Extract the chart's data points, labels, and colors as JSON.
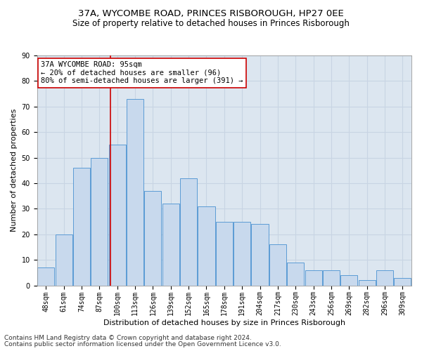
{
  "title1": "37A, WYCOMBE ROAD, PRINCES RISBOROUGH, HP27 0EE",
  "title2": "Size of property relative to detached houses in Princes Risborough",
  "xlabel": "Distribution of detached houses by size in Princes Risborough",
  "ylabel": "Number of detached properties",
  "footer1": "Contains HM Land Registry data © Crown copyright and database right 2024.",
  "footer2": "Contains public sector information licensed under the Open Government Licence v3.0.",
  "categories": [
    "48sqm",
    "61sqm",
    "74sqm",
    "87sqm",
    "100sqm",
    "113sqm",
    "126sqm",
    "139sqm",
    "152sqm",
    "165sqm",
    "178sqm",
    "191sqm",
    "204sqm",
    "217sqm",
    "230sqm",
    "243sqm",
    "256sqm",
    "269sqm",
    "282sqm",
    "296sqm",
    "309sqm"
  ],
  "values": [
    7,
    20,
    46,
    50,
    55,
    73,
    37,
    32,
    42,
    31,
    25,
    25,
    24,
    16,
    9,
    6,
    6,
    4,
    2,
    6,
    3
  ],
  "bar_color": "#c8d9ed",
  "bar_edge_color": "#5b9bd5",
  "bar_width": 0.95,
  "annotation_line1": "37A WYCOMBE ROAD: 95sqm",
  "annotation_line2": "← 20% of detached houses are smaller (96)",
  "annotation_line3": "80% of semi-detached houses are larger (391) →",
  "vline_x_index": 3.62,
  "ylim": [
    0,
    90
  ],
  "yticks": [
    0,
    10,
    20,
    30,
    40,
    50,
    60,
    70,
    80,
    90
  ],
  "annotation_box_color": "#ffffff",
  "annotation_box_edge_color": "#cc0000",
  "vline_color": "#cc0000",
  "grid_color": "#c8d4e3",
  "bg_color": "#dce6f0",
  "title1_fontsize": 9.5,
  "title2_fontsize": 8.5,
  "xlabel_fontsize": 8,
  "ylabel_fontsize": 8,
  "tick_fontsize": 7,
  "annotation_fontsize": 7.5,
  "footer_fontsize": 6.5
}
